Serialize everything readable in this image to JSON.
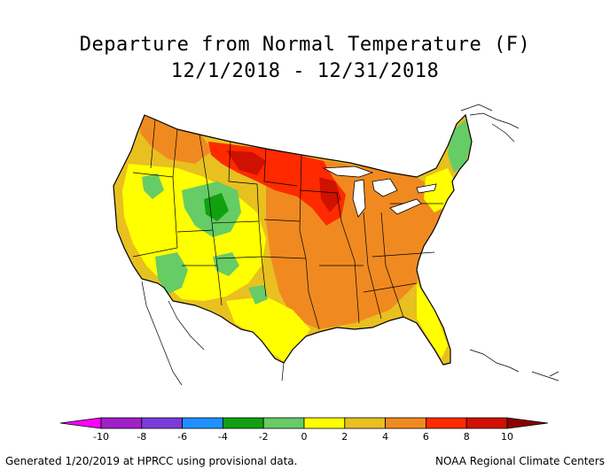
{
  "map": {
    "title_line1": "Departure from Normal Temperature (F)",
    "title_line2": "12/1/2018 - 12/31/2018",
    "region": "Contiguous United States",
    "units": "F"
  },
  "legend": {
    "bins": [
      {
        "from": null,
        "to": -10,
        "color": "#ff00ff"
      },
      {
        "from": -10,
        "to": -8,
        "color": "#a020c8"
      },
      {
        "from": -8,
        "to": -6,
        "color": "#7a3cd8"
      },
      {
        "from": -6,
        "to": -4,
        "color": "#1e90ff"
      },
      {
        "from": -4,
        "to": -2,
        "color": "#10a010"
      },
      {
        "from": -2,
        "to": 0,
        "color": "#66cc66"
      },
      {
        "from": 0,
        "to": 2,
        "color": "#ffff00"
      },
      {
        "from": 2,
        "to": 4,
        "color": "#e8c020"
      },
      {
        "from": 4,
        "to": 6,
        "color": "#f08a20"
      },
      {
        "from": 6,
        "to": 8,
        "color": "#ff2a00"
      },
      {
        "from": 8,
        "to": 10,
        "color": "#d01000"
      },
      {
        "from": 10,
        "to": null,
        "color": "#8b0000"
      }
    ],
    "tick_labels": [
      "-10",
      "-8",
      "-6",
      "-4",
      "-2",
      "0",
      "2",
      "4",
      "6",
      "8",
      "10"
    ]
  },
  "footer": {
    "left": "Generated 1/20/2019 at HPRCC using provisional data.",
    "right": "NOAA Regional Climate Centers"
  }
}
